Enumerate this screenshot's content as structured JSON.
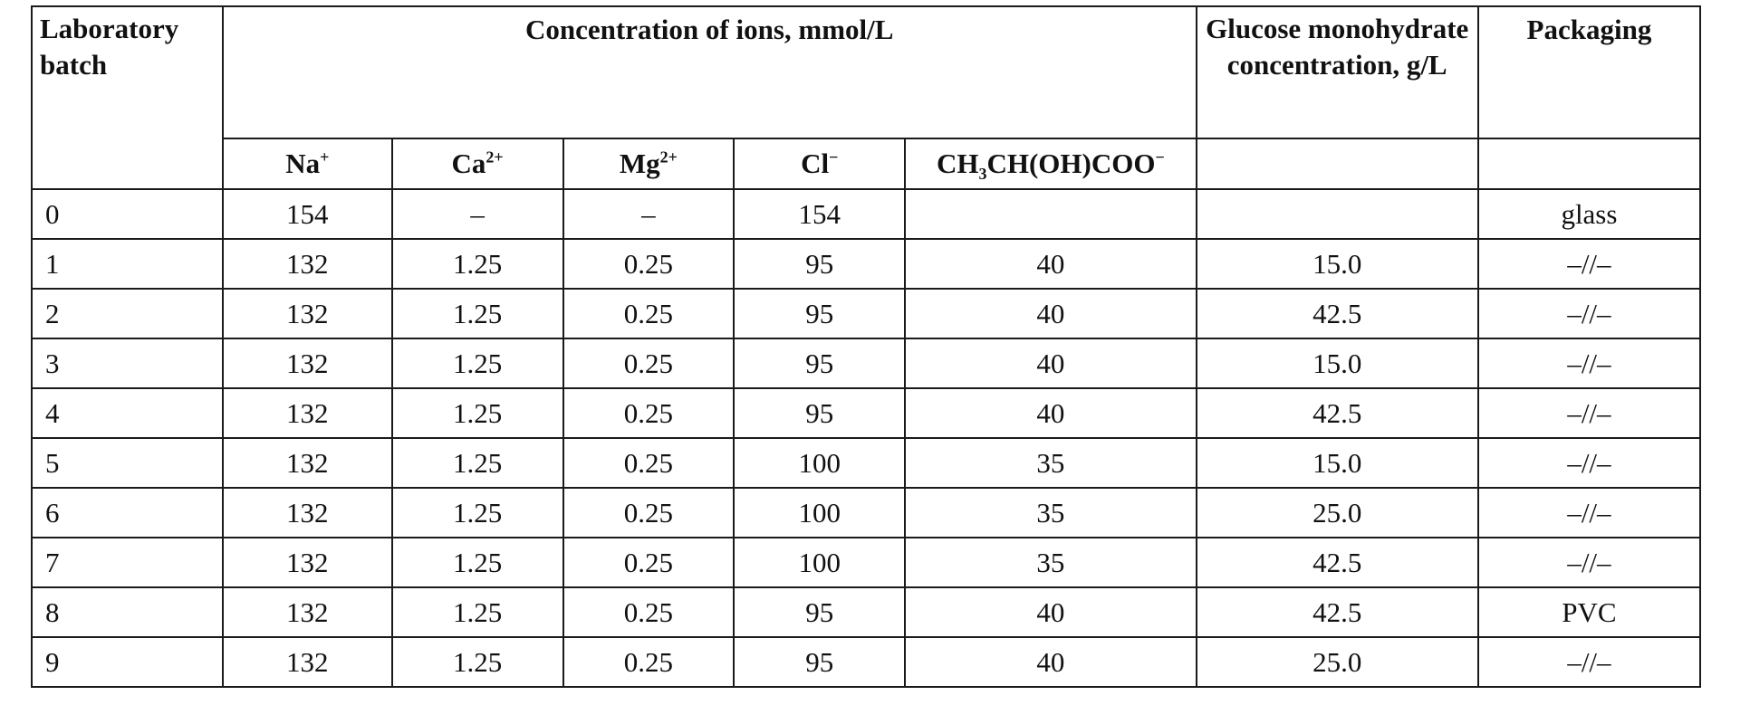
{
  "table": {
    "headers": {
      "batch": "Laboratory batch",
      "concentration": "Concentration of ions, mmol/L",
      "glucose": "Glucose monohydrate concentration, g/L",
      "packaging": "Packaging"
    },
    "ions": {
      "na": {
        "base": "Na",
        "sup": "+"
      },
      "ca": {
        "base": "Ca",
        "sup": "2+"
      },
      "mg": {
        "base": "Mg",
        "sup": "2+"
      },
      "cl": {
        "base": "Cl",
        "sup": "−"
      },
      "lactate": {
        "pre": "CH",
        "sub": "3",
        "post": "CH(OH)COO",
        "sup": "−"
      }
    },
    "rows": [
      {
        "batch": "0",
        "na": "154",
        "ca": "–",
        "mg": "–",
        "cl": "154",
        "lactate": "",
        "glucose": "",
        "packaging": "glass"
      },
      {
        "batch": "1",
        "na": "132",
        "ca": "1.25",
        "mg": "0.25",
        "cl": "95",
        "lactate": "40",
        "glucose": "15.0",
        "packaging": "–//–"
      },
      {
        "batch": "2",
        "na": "132",
        "ca": "1.25",
        "mg": "0.25",
        "cl": "95",
        "lactate": "40",
        "glucose": "42.5",
        "packaging": "–//–"
      },
      {
        "batch": "3",
        "na": "132",
        "ca": "1.25",
        "mg": "0.25",
        "cl": "95",
        "lactate": "40",
        "glucose": "15.0",
        "packaging": "–//–"
      },
      {
        "batch": "4",
        "na": "132",
        "ca": "1.25",
        "mg": "0.25",
        "cl": "95",
        "lactate": "40",
        "glucose": "42.5",
        "packaging": "–//–"
      },
      {
        "batch": "5",
        "na": "132",
        "ca": "1.25",
        "mg": "0.25",
        "cl": "100",
        "lactate": "35",
        "glucose": "15.0",
        "packaging": "–//–"
      },
      {
        "batch": "6",
        "na": "132",
        "ca": "1.25",
        "mg": "0.25",
        "cl": "100",
        "lactate": "35",
        "glucose": "25.0",
        "packaging": "–//–"
      },
      {
        "batch": "7",
        "na": "132",
        "ca": "1.25",
        "mg": "0.25",
        "cl": "100",
        "lactate": "35",
        "glucose": "42.5",
        "packaging": "–//–"
      },
      {
        "batch": "8",
        "na": "132",
        "ca": "1.25",
        "mg": "0.25",
        "cl": "95",
        "lactate": "40",
        "glucose": "42.5",
        "packaging": "PVC"
      },
      {
        "batch": "9",
        "na": "132",
        "ca": "1.25",
        "mg": "0.25",
        "cl": "95",
        "lactate": "40",
        "glucose": "25.0",
        "packaging": "–//–"
      }
    ]
  }
}
